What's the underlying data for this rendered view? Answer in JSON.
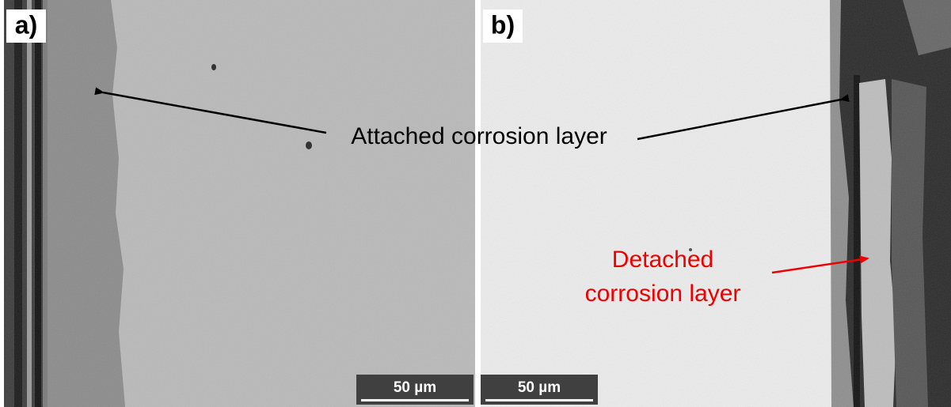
{
  "panels": [
    {
      "label": "a)",
      "scale_bar": "50 µm"
    },
    {
      "label": "b)",
      "scale_bar": "50 µm"
    }
  ],
  "annotations": {
    "attached": "Attached corrosion layer",
    "detached": [
      "Detached",
      "corrosion layer"
    ]
  }
}
